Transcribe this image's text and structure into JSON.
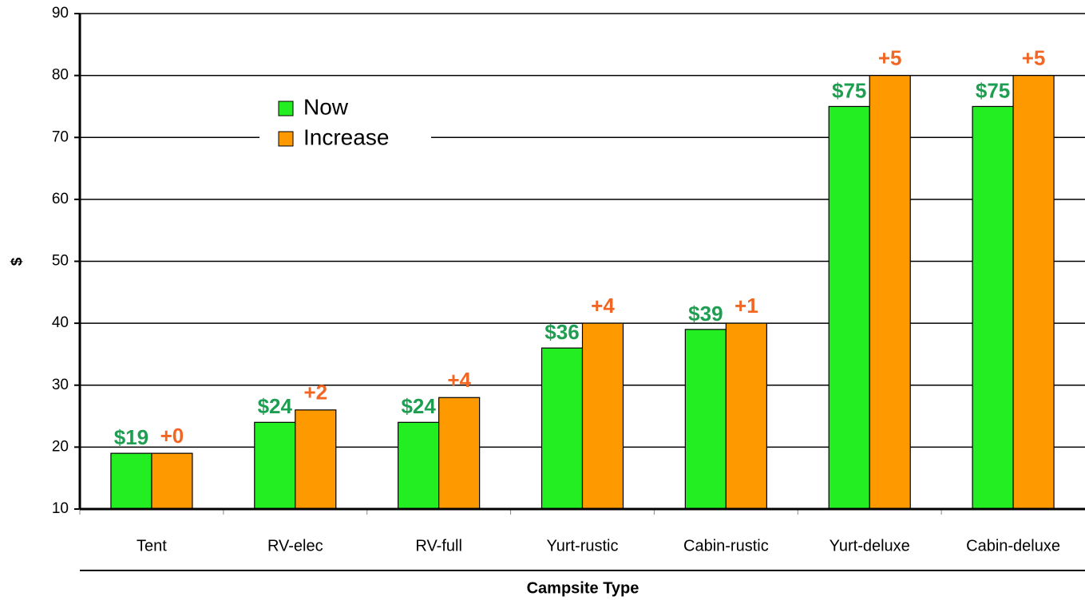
{
  "chart_data": {
    "type": "bar",
    "x_label": "Campsite Type",
    "y_label": "$",
    "categories": [
      "Tent",
      "RV-elec",
      "RV-full",
      "Yurt-rustic",
      "Cabin-rustic",
      "Yurt-deluxe",
      "Cabin-deluxe"
    ],
    "series": [
      {
        "name": "Now",
        "color": "#22ee22",
        "label_color": "#1e9e50",
        "values": [
          19,
          24,
          24,
          36,
          39,
          75,
          75
        ],
        "value_labels": [
          "$19",
          "$24",
          "$24",
          "$36",
          "$39",
          "$75",
          "$75"
        ]
      },
      {
        "name": "Increase",
        "color": "#ff9900",
        "label_color": "#f26522",
        "values": [
          0,
          2,
          4,
          4,
          1,
          5,
          5
        ],
        "value_labels": [
          "+0",
          "+2",
          "+4",
          "+4",
          "+1",
          "+5",
          "+5"
        ]
      }
    ],
    "ylim": [
      10,
      90
    ],
    "yticks": [
      10,
      20,
      30,
      40,
      50,
      60,
      70,
      80,
      90
    ],
    "grid": true
  }
}
